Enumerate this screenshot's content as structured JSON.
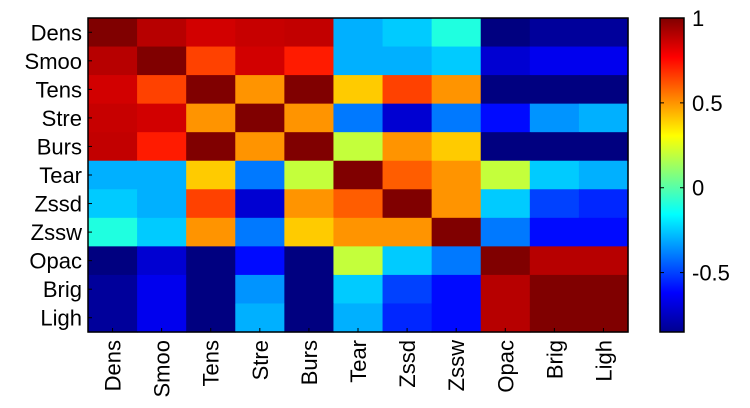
{
  "chart_data": {
    "type": "heatmap",
    "title": "",
    "xlabel": "",
    "ylabel": "",
    "variables": [
      "Dens",
      "Smoo",
      "Tens",
      "Stre",
      "Burs",
      "Tear",
      "Zssd",
      "Zssw",
      "Opac",
      "Brig",
      "Ligh"
    ],
    "values": [
      [
        1.0,
        0.9,
        0.85,
        0.87,
        0.88,
        -0.3,
        -0.25,
        -0.1,
        -0.85,
        -0.8,
        -0.8
      ],
      [
        0.9,
        1.0,
        0.65,
        0.85,
        0.72,
        -0.3,
        -0.3,
        -0.25,
        -0.7,
        -0.65,
        -0.65
      ],
      [
        0.85,
        0.65,
        1.0,
        0.5,
        1.0,
        0.4,
        0.65,
        0.5,
        -0.85,
        -0.9,
        -0.9
      ],
      [
        0.87,
        0.85,
        0.5,
        1.0,
        0.5,
        -0.4,
        -0.7,
        -0.4,
        -0.6,
        -0.35,
        -0.3
      ],
      [
        0.88,
        0.72,
        1.0,
        0.5,
        1.0,
        0.2,
        0.5,
        0.4,
        -0.9,
        -0.9,
        -0.9
      ],
      [
        -0.3,
        -0.3,
        0.4,
        -0.4,
        0.2,
        1.0,
        0.6,
        0.5,
        0.2,
        -0.25,
        -0.3
      ],
      [
        -0.25,
        -0.3,
        0.65,
        -0.7,
        0.5,
        0.6,
        1.0,
        0.5,
        -0.25,
        -0.5,
        -0.55
      ],
      [
        -0.1,
        -0.25,
        0.5,
        -0.4,
        0.4,
        0.5,
        0.5,
        1.0,
        -0.4,
        -0.6,
        -0.6
      ],
      [
        -0.85,
        -0.7,
        -0.85,
        -0.6,
        -0.9,
        0.2,
        -0.25,
        -0.4,
        1.0,
        0.9,
        0.9
      ],
      [
        -0.8,
        -0.65,
        -0.9,
        -0.35,
        -0.9,
        -0.25,
        -0.5,
        -0.6,
        0.9,
        1.0,
        1.0
      ],
      [
        -0.8,
        -0.65,
        -0.9,
        -0.3,
        -0.9,
        -0.3,
        -0.55,
        -0.6,
        0.9,
        1.0,
        1.0
      ]
    ],
    "colorbar": {
      "min": -0.85,
      "max": 1.0,
      "ticks": [
        1,
        0.5,
        0,
        -0.5
      ],
      "tick_labels": [
        "1",
        "0.5",
        "0",
        "-0.5"
      ],
      "colormap": "jet"
    },
    "grid": false,
    "legend": "colorbar-right"
  }
}
